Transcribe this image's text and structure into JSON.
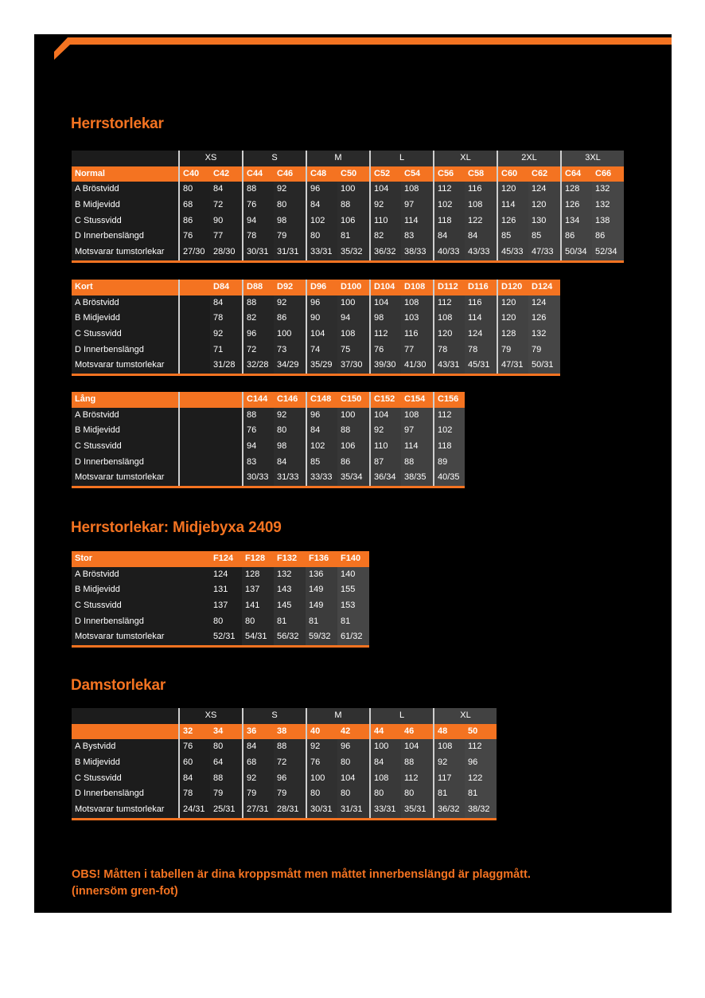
{
  "colors": {
    "accent": "#f47321",
    "panel": "#000000"
  },
  "titles": {
    "men": "Herrstorlekar",
    "waist": "Herrstorlekar: Midjebyxa 2409",
    "women": "Damstorlekar"
  },
  "tables": {
    "normal": {
      "size_groups": [
        "XS",
        "S",
        "M",
        "L",
        "XL",
        "2XL",
        "3XL"
      ],
      "header_label": "Normal",
      "codes": [
        "C40",
        "C42",
        "C44",
        "C46",
        "C48",
        "C50",
        "C52",
        "C54",
        "C56",
        "C58",
        "C60",
        "C62",
        "C64",
        "C66"
      ],
      "rows": [
        {
          "label": "A Bröstvidd",
          "values": [
            "80",
            "84",
            "88",
            "92",
            "96",
            "100",
            "104",
            "108",
            "112",
            "116",
            "120",
            "124",
            "128",
            "132"
          ]
        },
        {
          "label": "B Midjevidd",
          "values": [
            "68",
            "72",
            "76",
            "80",
            "84",
            "88",
            "92",
            "97",
            "102",
            "108",
            "114",
            "120",
            "126",
            "132"
          ]
        },
        {
          "label": "C Stussvidd",
          "values": [
            "86",
            "90",
            "94",
            "98",
            "102",
            "106",
            "110",
            "114",
            "118",
            "122",
            "126",
            "130",
            "134",
            "138"
          ]
        },
        {
          "label": "D Innerbenslängd",
          "values": [
            "76",
            "77",
            "78",
            "79",
            "80",
            "81",
            "82",
            "83",
            "84",
            "84",
            "85",
            "85",
            "86",
            "86"
          ]
        },
        {
          "label": "Motsvarar tumstorlekar",
          "values": [
            "27/30",
            "28/30",
            "30/31",
            "31/31",
            "33/31",
            "35/32",
            "36/32",
            "38/33",
            "40/33",
            "43/33",
            "45/33",
            "47/33",
            "50/34",
            "52/34"
          ]
        }
      ]
    },
    "kort": {
      "header_label": "Kort",
      "codes": [
        "D84",
        "D88",
        "D92",
        "D96",
        "D100",
        "D104",
        "D108",
        "D112",
        "D116",
        "D120",
        "D124"
      ],
      "rows": [
        {
          "label": "A Bröstvidd",
          "values": [
            "84",
            "88",
            "92",
            "96",
            "100",
            "104",
            "108",
            "112",
            "116",
            "120",
            "124"
          ]
        },
        {
          "label": "B Midjevidd",
          "values": [
            "78",
            "82",
            "86",
            "90",
            "94",
            "98",
            "103",
            "108",
            "114",
            "120",
            "126"
          ]
        },
        {
          "label": "C Stussvidd",
          "values": [
            "92",
            "96",
            "100",
            "104",
            "108",
            "112",
            "116",
            "120",
            "124",
            "128",
            "132"
          ]
        },
        {
          "label": "D Innerbenslängd",
          "values": [
            "71",
            "72",
            "73",
            "74",
            "75",
            "76",
            "77",
            "78",
            "78",
            "79",
            "79"
          ]
        },
        {
          "label": "Motsvarar tumstorlekar",
          "values": [
            "31/28",
            "32/28",
            "34/29",
            "35/29",
            "37/30",
            "39/30",
            "41/30",
            "43/31",
            "45/31",
            "47/31",
            "50/31"
          ]
        }
      ]
    },
    "lang": {
      "header_label": "Lång",
      "codes": [
        "C144",
        "C146",
        "C148",
        "C150",
        "C152",
        "C154",
        "C156"
      ],
      "rows": [
        {
          "label": "A Bröstvidd",
          "values": [
            "88",
            "92",
            "96",
            "100",
            "104",
            "108",
            "112"
          ]
        },
        {
          "label": "B Midjevidd",
          "values": [
            "76",
            "80",
            "84",
            "88",
            "92",
            "97",
            "102"
          ]
        },
        {
          "label": "C Stussvidd",
          "values": [
            "94",
            "98",
            "102",
            "106",
            "110",
            "114",
            "118"
          ]
        },
        {
          "label": "D Innerbenslängd",
          "values": [
            "83",
            "84",
            "85",
            "86",
            "87",
            "88",
            "89"
          ]
        },
        {
          "label": "Motsvarar tumstorlekar",
          "values": [
            "30/33",
            "31/33",
            "33/33",
            "35/34",
            "36/34",
            "38/35",
            "40/35"
          ]
        }
      ]
    },
    "stor": {
      "header_label": "Stor",
      "codes": [
        "F124",
        "F128",
        "F132",
        "F136",
        "F140"
      ],
      "rows": [
        {
          "label": "A Bröstvidd",
          "values": [
            "124",
            "128",
            "132",
            "136",
            "140"
          ]
        },
        {
          "label": "B Midjevidd",
          "values": [
            "131",
            "137",
            "143",
            "149",
            "155"
          ]
        },
        {
          "label": "C Stussvidd",
          "values": [
            "137",
            "141",
            "145",
            "149",
            "153"
          ]
        },
        {
          "label": "D Innerbenslängd",
          "values": [
            "80",
            "80",
            "81",
            "81",
            "81"
          ]
        },
        {
          "label": "Motsvarar tumstorlekar",
          "values": [
            "52/31",
            "54/31",
            "56/32",
            "59/32",
            "61/32"
          ]
        }
      ]
    },
    "dam": {
      "size_groups": [
        "XS",
        "S",
        "M",
        "L",
        "XL"
      ],
      "header_label": "",
      "codes": [
        "32",
        "34",
        "36",
        "38",
        "40",
        "42",
        "44",
        "46",
        "48",
        "50"
      ],
      "rows": [
        {
          "label": "A Bystvidd",
          "values": [
            "76",
            "80",
            "84",
            "88",
            "92",
            "96",
            "100",
            "104",
            "108",
            "112"
          ]
        },
        {
          "label": "B Midjevidd",
          "values": [
            "60",
            "64",
            "68",
            "72",
            "76",
            "80",
            "84",
            "88",
            "92",
            "96"
          ]
        },
        {
          "label": "C Stussvidd",
          "values": [
            "84",
            "88",
            "92",
            "96",
            "100",
            "104",
            "108",
            "112",
            "117",
            "122"
          ]
        },
        {
          "label": "D Innerbenslängd",
          "values": [
            "78",
            "79",
            "79",
            "79",
            "80",
            "80",
            "80",
            "80",
            "81",
            "81"
          ]
        },
        {
          "label": "Motsvarar tumstorlekar",
          "values": [
            "24/31",
            "25/31",
            "27/31",
            "28/31",
            "30/31",
            "31/31",
            "33/31",
            "35/31",
            "36/32",
            "38/32"
          ]
        }
      ]
    }
  },
  "note": {
    "line1": "OBS! Måtten i tabellen är dina kroppsmått men måttet innerbenslängd är plaggmått.",
    "line2": "(innersöm gren-fot)"
  }
}
